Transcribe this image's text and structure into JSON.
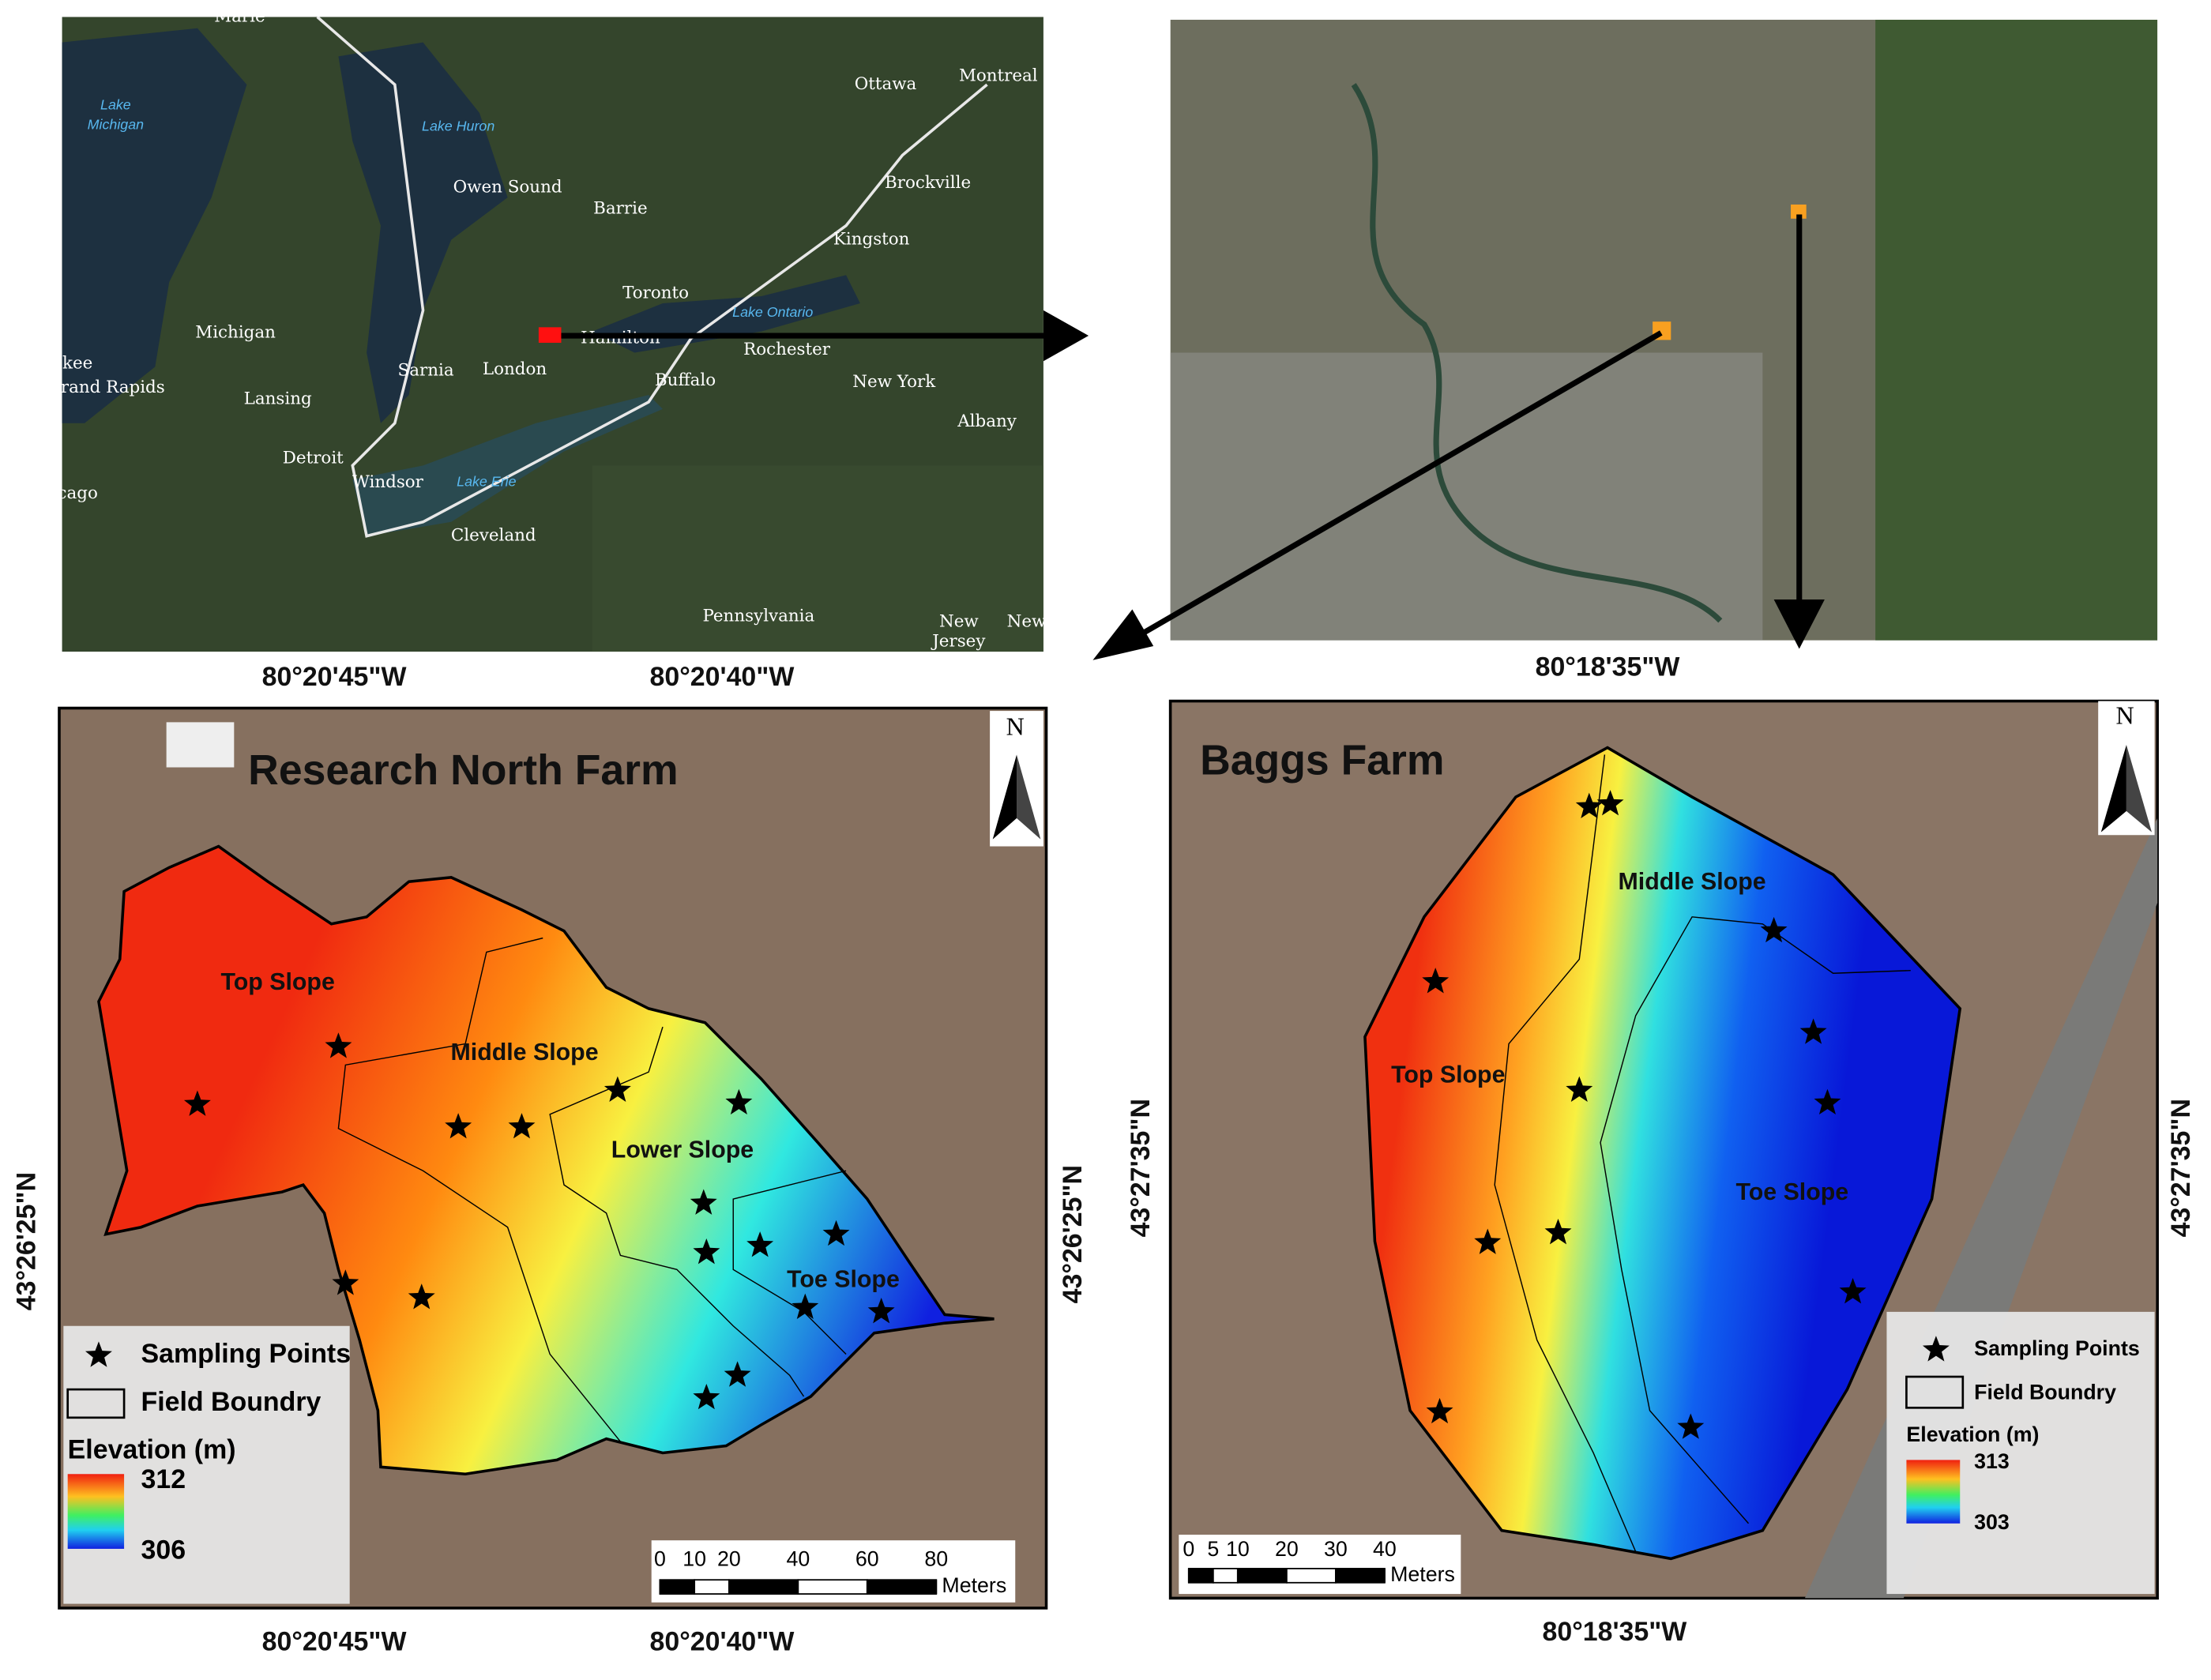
{
  "regional_map": {
    "places": [
      "Marie",
      "Lake",
      "Michigan",
      "Lake Huron",
      "Owen Sound",
      "Barrie",
      "Ottawa",
      "Montreal",
      "Brockville",
      "Kingston",
      "Toronto",
      "Lake Ontario",
      "Hamilton",
      "Rochester",
      "Michigan",
      "Sarnia",
      "London",
      "Buffalo",
      "New York",
      "kee",
      "rand Rapids",
      "Lansing",
      "Albany",
      "Detroit",
      "Windsor",
      "Lake Erie",
      "cago",
      "Cleveland",
      "Pennsylvania",
      "New",
      "Jersey",
      "New"
    ]
  },
  "research_north_farm": {
    "title": "Research North Farm",
    "zones": [
      "Top Slope",
      "Middle Slope",
      "Lower Slope",
      "Toe Slope"
    ],
    "north": "N",
    "longitude_labels": [
      "80°20'45\"W",
      "80°20'40\"W"
    ],
    "latitude_label": "43°26'25\"N",
    "legend": {
      "sampling_points": "Sampling Points",
      "field_boundary": "Field Boundry",
      "elevation_title": "Elevation (m)",
      "elevation_max": 312,
      "elevation_min": 306
    },
    "scale": {
      "ticks": [
        0,
        10,
        20,
        40,
        60,
        80
      ],
      "unit": "Meters"
    }
  },
  "baggs_farm": {
    "title": "Baggs Farm",
    "zones": [
      "Middle Slope",
      "Top Slope",
      "Toe Slope"
    ],
    "north": "N",
    "longitude_labels": [
      "80°18'35\"W"
    ],
    "latitude_label": "43°27'35\"N",
    "legend": {
      "sampling_points": "Sampling Points",
      "field_boundary": "Field Boundry",
      "elevation_title": "Elevation (m)",
      "elevation_max": 313,
      "elevation_min": 303
    },
    "scale": {
      "ticks": [
        0,
        5,
        10,
        20,
        30,
        40
      ],
      "unit": "Meters"
    }
  }
}
